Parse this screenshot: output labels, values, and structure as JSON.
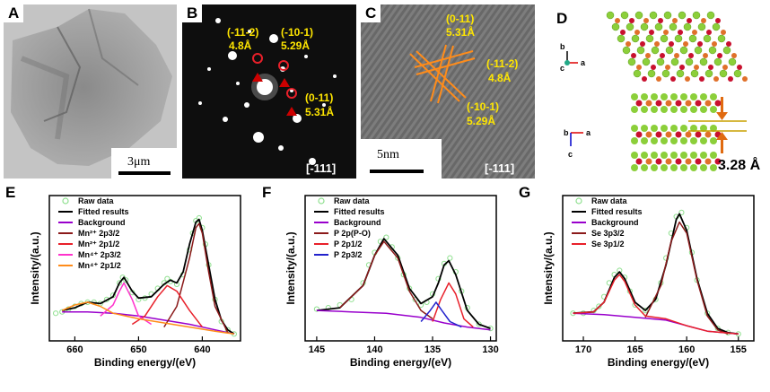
{
  "panels": {
    "A": {
      "label": "A",
      "scale_bar": "3μm"
    },
    "B": {
      "label": "B",
      "zone_axis": "[-111]",
      "spots": [
        {
          "plane": "(-11-2)",
          "d": "4.8Å"
        },
        {
          "plane": "(-10-1)",
          "d": "5.29Å"
        },
        {
          "plane": "(0-11)",
          "d": "5.31Å"
        }
      ]
    },
    "C": {
      "label": "C",
      "zone_axis": "[-111]",
      "scale_bar": "5nm",
      "fringes": [
        {
          "plane": "(0-11)",
          "d": "5.31Å"
        },
        {
          "plane": "(-11-2)",
          "d": "4.8Å"
        },
        {
          "plane": "(-10-1)",
          "d": "5.29Å"
        }
      ]
    },
    "D": {
      "label": "D",
      "axes_top": [
        "b",
        "c",
        "a"
      ],
      "axes_bottom": [
        "b",
        "a",
        "c"
      ],
      "spacing": "3.28 Å"
    }
  },
  "colors": {
    "raw": "#90e090",
    "fit": "#000000",
    "bg": "#9900cc",
    "red": "#e8202a",
    "darkred": "#8b1a1a",
    "magenta": "#ff33cc",
    "orange": "#ff8c1a",
    "blue": "#2222cc",
    "yellow": "#ffe600"
  },
  "chart_data": [
    {
      "id": "E",
      "type": "line",
      "label": "E",
      "xlabel": "Binding energy/(eV)",
      "ylabel": "Intensity/(a.u.)",
      "xlim": [
        664,
        634
      ],
      "xticks": [
        660,
        650,
        640
      ],
      "legend": [
        "Raw data",
        "Fitted results",
        "Background",
        "Mn²⁺ 2p3/2",
        "Mn²⁺ 2p1/2",
        "Mn⁴⁺ 2p3/2",
        "Mn⁴⁺ 2p1/2"
      ],
      "series": [
        {
          "name": "Fitted results",
          "color": "#000000",
          "x": [
            662,
            660,
            658,
            656,
            654,
            653,
            652.3,
            651,
            650,
            648,
            646,
            645,
            644,
            643,
            642,
            641,
            640.5,
            640,
            639,
            638,
            637,
            636,
            635
          ],
          "y": [
            0.22,
            0.24,
            0.28,
            0.27,
            0.32,
            0.42,
            0.46,
            0.36,
            0.31,
            0.32,
            0.41,
            0.44,
            0.42,
            0.5,
            0.7,
            0.86,
            0.88,
            0.8,
            0.55,
            0.3,
            0.15,
            0.08,
            0.05
          ]
        },
        {
          "name": "Background",
          "color": "#9900cc",
          "x": [
            662,
            658,
            654,
            650,
            646,
            642,
            638,
            635
          ],
          "y": [
            0.21,
            0.21,
            0.2,
            0.18,
            0.15,
            0.12,
            0.08,
            0.05
          ]
        },
        {
          "name": "Mn²⁺ 2p3/2",
          "color": "#8b1a1a",
          "x": [
            646,
            644,
            642,
            641,
            640.5,
            640,
            639,
            638,
            636
          ],
          "y": [
            0.1,
            0.25,
            0.6,
            0.82,
            0.85,
            0.78,
            0.5,
            0.25,
            0.06
          ]
        },
        {
          "name": "Mn²⁺ 2p1/2",
          "color": "#e8202a",
          "x": [
            651,
            649,
            647,
            645.5,
            644,
            642,
            640
          ],
          "y": [
            0.12,
            0.18,
            0.32,
            0.4,
            0.36,
            0.22,
            0.1
          ]
        },
        {
          "name": "Mn⁴⁺ 2p3/2",
          "color": "#ff33cc",
          "x": [
            656,
            654,
            653,
            652.3,
            651,
            650,
            648
          ],
          "y": [
            0.18,
            0.26,
            0.36,
            0.42,
            0.3,
            0.18,
            0.12
          ]
        },
        {
          "name": "Mn⁴⁺ 2p1/2",
          "color": "#ff8c1a",
          "x": [
            662,
            660,
            658,
            656,
            654,
            650,
            646,
            642,
            638,
            635
          ],
          "y": [
            0.22,
            0.26,
            0.28,
            0.25,
            0.2,
            0.16,
            0.13,
            0.1,
            0.07,
            0.05
          ]
        }
      ],
      "raw_data": {
        "x": [
          663,
          662,
          661,
          660,
          659,
          658,
          657,
          656,
          655,
          654,
          653,
          652.5,
          652,
          651,
          650,
          649,
          648,
          647,
          646,
          645.5,
          645,
          644,
          643,
          642,
          641.5,
          641,
          640.5,
          640,
          639.5,
          639,
          638,
          637,
          636,
          635
        ],
        "y": [
          0.2,
          0.21,
          0.23,
          0.25,
          0.27,
          0.28,
          0.28,
          0.27,
          0.3,
          0.33,
          0.42,
          0.46,
          0.44,
          0.35,
          0.3,
          0.31,
          0.34,
          0.38,
          0.42,
          0.45,
          0.43,
          0.41,
          0.48,
          0.66,
          0.78,
          0.87,
          0.89,
          0.82,
          0.7,
          0.55,
          0.3,
          0.14,
          0.08,
          0.05
        ]
      }
    },
    {
      "id": "F",
      "type": "line",
      "label": "F",
      "xlabel": "Binding energy/(eV)",
      "ylabel": "Intensity/(a.u.)",
      "xlim": [
        146,
        129.5
      ],
      "xticks": [
        145,
        140,
        135,
        130
      ],
      "legend": [
        "Raw data",
        "Fitted results",
        "Background",
        "P 2p(P-O)",
        "P 2p1/2",
        "P 2p3/2"
      ],
      "series": [
        {
          "name": "Fitted results",
          "color": "#000000",
          "x": [
            145,
            143,
            141,
            140,
            139.2,
            138,
            137,
            136,
            135,
            134.5,
            134,
            133.6,
            133,
            132,
            131,
            130
          ],
          "y": [
            0.22,
            0.24,
            0.4,
            0.62,
            0.74,
            0.62,
            0.38,
            0.27,
            0.32,
            0.42,
            0.55,
            0.58,
            0.48,
            0.22,
            0.12,
            0.09
          ]
        },
        {
          "name": "Background",
          "color": "#9900cc",
          "x": [
            145,
            142,
            139,
            136,
            134,
            132,
            130
          ],
          "y": [
            0.22,
            0.21,
            0.2,
            0.17,
            0.13,
            0.1,
            0.08
          ]
        },
        {
          "name": "P 2p(P-O)",
          "color": "#8b1a1a",
          "x": [
            143,
            141,
            140,
            139.2,
            138,
            137,
            136,
            135
          ],
          "y": [
            0.24,
            0.4,
            0.62,
            0.72,
            0.6,
            0.36,
            0.22,
            0.16
          ]
        },
        {
          "name": "P 2p1/2",
          "color": "#e8202a",
          "x": [
            135,
            134.3,
            133.6,
            133,
            132.3,
            131.5
          ],
          "y": [
            0.14,
            0.3,
            0.42,
            0.34,
            0.16,
            0.1
          ]
        },
        {
          "name": "P 2p3/2",
          "color": "#2222cc",
          "x": [
            136,
            135.2,
            134.7,
            134.2,
            133.5,
            132.5
          ],
          "y": [
            0.14,
            0.22,
            0.28,
            0.22,
            0.14,
            0.1
          ]
        }
      ],
      "raw_data": {
        "x": [
          145,
          144,
          143,
          142,
          141,
          140.5,
          140,
          139.5,
          139,
          138.5,
          138,
          137.5,
          137,
          136.5,
          136,
          135.5,
          135,
          134.5,
          134,
          133.5,
          133,
          132.5,
          132,
          131,
          130
        ],
        "y": [
          0.23,
          0.24,
          0.26,
          0.3,
          0.42,
          0.55,
          0.64,
          0.72,
          0.75,
          0.68,
          0.6,
          0.48,
          0.38,
          0.3,
          0.26,
          0.28,
          0.34,
          0.45,
          0.56,
          0.6,
          0.5,
          0.36,
          0.24,
          0.12,
          0.09
        ]
      }
    },
    {
      "id": "G",
      "type": "line",
      "label": "G",
      "xlabel": "Binding energy/(eV)",
      "ylabel": "Intensity/(a.u.)",
      "xlim": [
        172,
        153.5
      ],
      "xticks": [
        170,
        165,
        160,
        155
      ],
      "legend": [
        "Raw data",
        "Fitted results",
        "Background",
        "Se 3p3/2",
        "Se 3p1/2"
      ],
      "series": [
        {
          "name": "Fitted results",
          "color": "#000000",
          "x": [
            171,
            169,
            168,
            167,
            166.5,
            166,
            165,
            164,
            163,
            162,
            161,
            160.7,
            160,
            159,
            158,
            157,
            156,
            155
          ],
          "y": [
            0.2,
            0.21,
            0.28,
            0.46,
            0.5,
            0.45,
            0.28,
            0.22,
            0.3,
            0.55,
            0.88,
            0.92,
            0.8,
            0.45,
            0.2,
            0.09,
            0.06,
            0.05
          ]
        },
        {
          "name": "Background",
          "color": "#9900cc",
          "x": [
            171,
            168,
            165,
            162,
            160,
            158,
            155
          ],
          "y": [
            0.2,
            0.19,
            0.17,
            0.15,
            0.11,
            0.07,
            0.05
          ]
        },
        {
          "name": "Se 3p3/2",
          "color": "#8b1a1a",
          "x": [
            164,
            162.5,
            161.5,
            160.7,
            160,
            159,
            158,
            157,
            156
          ],
          "y": [
            0.17,
            0.4,
            0.72,
            0.86,
            0.78,
            0.44,
            0.18,
            0.08,
            0.05
          ]
        },
        {
          "name": "Se 3p1/2",
          "color": "#e8202a",
          "x": [
            171,
            169,
            168,
            167,
            166.5,
            166,
            165,
            164,
            162,
            160,
            158,
            155
          ],
          "y": [
            0.2,
            0.21,
            0.28,
            0.44,
            0.48,
            0.43,
            0.26,
            0.18,
            0.16,
            0.11,
            0.07,
            0.05
          ]
        }
      ],
      "raw_data": {
        "x": [
          171,
          170,
          169,
          168.5,
          168,
          167.5,
          167,
          166.5,
          166,
          165.5,
          165,
          164,
          163,
          162.5,
          162,
          161.5,
          161,
          160.5,
          160,
          159.5,
          159,
          158,
          157,
          156,
          155
        ],
        "y": [
          0.2,
          0.2,
          0.22,
          0.25,
          0.32,
          0.42,
          0.48,
          0.51,
          0.46,
          0.36,
          0.26,
          0.22,
          0.3,
          0.42,
          0.6,
          0.78,
          0.9,
          0.93,
          0.82,
          0.64,
          0.44,
          0.2,
          0.09,
          0.06,
          0.05
        ]
      }
    }
  ]
}
